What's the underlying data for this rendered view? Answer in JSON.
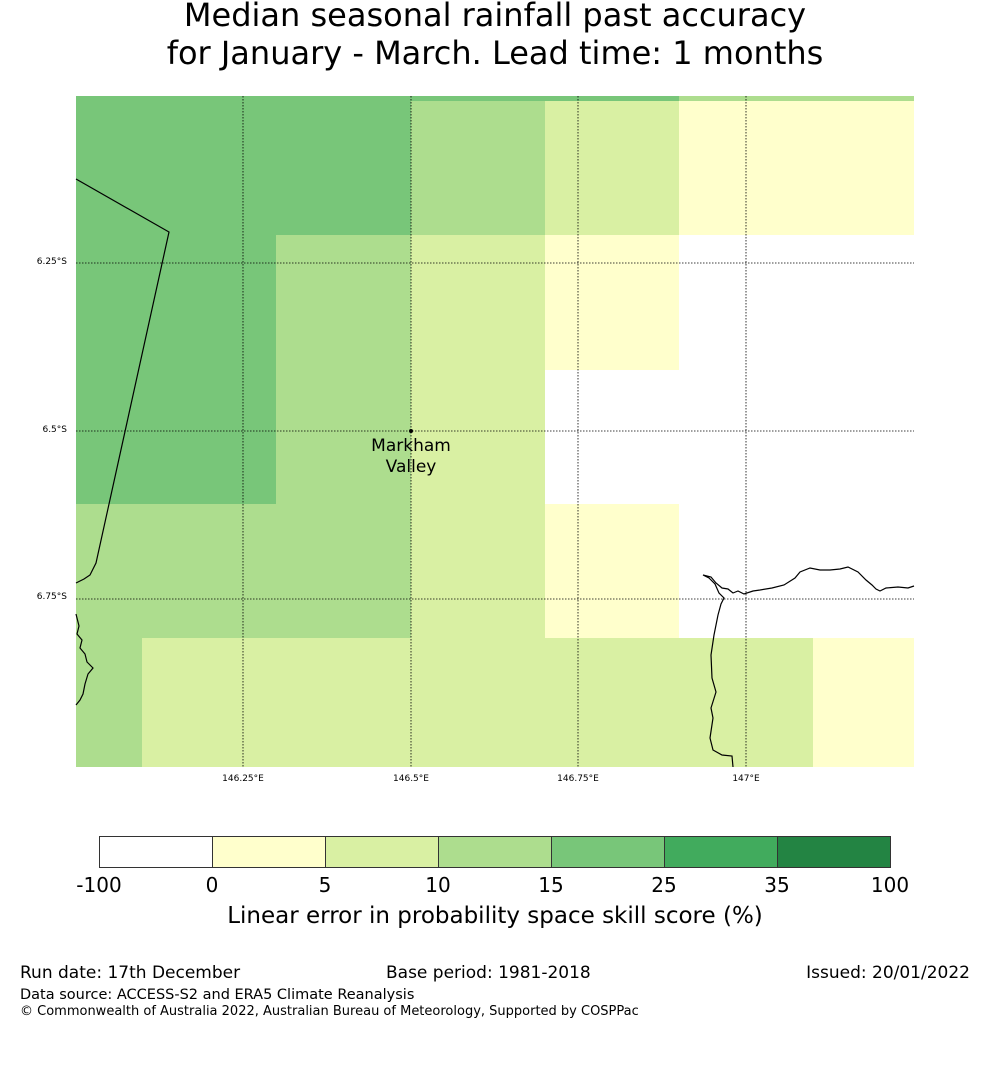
{
  "title": {
    "line1": "Median seasonal rainfall past accuracy",
    "line2": "for January - March. Lead time: 1 months"
  },
  "map": {
    "lat_labels": [
      "6.25°S",
      "6.5°S",
      "6.75°S"
    ],
    "lon_labels": [
      "146.25°E",
      "146.5°E",
      "146.75°E",
      "147°E"
    ],
    "place": {
      "name_line1": "Markham",
      "name_line2": "Valley"
    }
  },
  "legend": {
    "title": "Linear error in probability space skill score (%)",
    "ticks": [
      "-100",
      "0",
      "5",
      "10",
      "15",
      "25",
      "35",
      "100"
    ],
    "colors": [
      "#ffffff",
      "#ffffcc",
      "#d9f0a3",
      "#addd8e",
      "#78c679",
      "#41ab5d",
      "#238443"
    ]
  },
  "footer": {
    "run_date": "Run date: 17th December",
    "base_period": "Base period: 1981-2018",
    "issued": "Issued: 20/01/2022",
    "data_source": "Data source: ACCESS-S2 and ERA5 Climate Reanalysis",
    "copyright": "© Commonwealth of Australia 2022, Australian Bureau of Meteorology, Supported by COSPPac"
  }
}
